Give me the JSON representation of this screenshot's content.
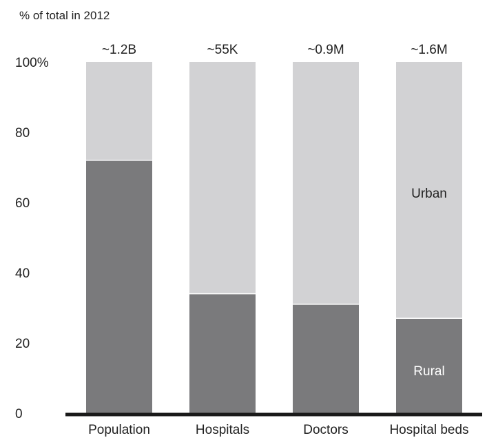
{
  "chart_data": {
    "type": "bar",
    "stacked": true,
    "title": "",
    "ylabel": "% of total in 2012",
    "ylim": [
      0,
      100
    ],
    "yticks": [
      0,
      20,
      40,
      60,
      80,
      100
    ],
    "ytick_labels": [
      "0",
      "20",
      "40",
      "60",
      "80",
      "100%"
    ],
    "categories": [
      "Population",
      "Hospitals",
      "Doctors",
      "Hospital beds"
    ],
    "totals": [
      "~1.2B",
      "~55K",
      "~0.9M",
      "~1.6M"
    ],
    "series": [
      {
        "name": "Rural",
        "values": [
          72,
          34,
          31,
          27
        ]
      },
      {
        "name": "Urban",
        "values": [
          28,
          66,
          69,
          73
        ]
      }
    ],
    "grid": false,
    "legend": "none",
    "colors": {
      "Rural": "#7a7a7c",
      "Urban": "#d2d2d4",
      "axis": "#1a1a1a",
      "text": "#222222",
      "segment_label": "#ffffff"
    }
  }
}
